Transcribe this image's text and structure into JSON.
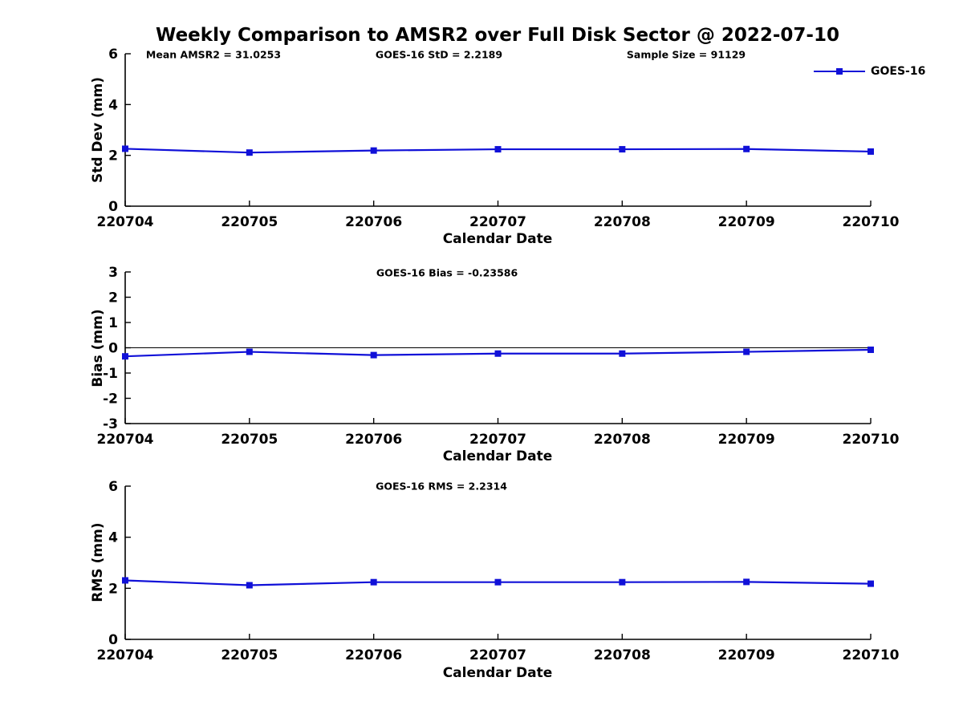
{
  "figure": {
    "title": "Weekly Comparison to AMSR2 over Full Disk Sector @ 2022-07-10",
    "background_color": "#ffffff",
    "line_color": "#1010d8",
    "axis_color": "#000000",
    "text_color": "#000000"
  },
  "legend": {
    "label": "GOES-16"
  },
  "chart_data": [
    {
      "type": "line",
      "title": "",
      "annotations": [
        "Mean AMSR2 = 31.0253",
        "GOES-16 StD = 2.2189",
        "Sample Size = 91129"
      ],
      "categories": [
        "220704",
        "220705",
        "220706",
        "220707",
        "220708",
        "220709",
        "220710"
      ],
      "series": [
        {
          "name": "GOES-16",
          "values": [
            2.26,
            2.11,
            2.19,
            2.24,
            2.24,
            2.25,
            2.15
          ]
        }
      ],
      "xlabel": "Calendar Date",
      "ylabel": "Std Dev (mm)",
      "ylim": [
        0,
        6
      ],
      "yticks": [
        0,
        2,
        4,
        6
      ],
      "grid": false,
      "zero_line": false,
      "legend_position": "top-right-outside"
    },
    {
      "type": "line",
      "title": "",
      "annotation": "GOES-16 Bias  = -0.23586",
      "categories": [
        "220704",
        "220705",
        "220706",
        "220707",
        "220708",
        "220709",
        "220710"
      ],
      "series": [
        {
          "name": "GOES-16",
          "values": [
            -0.34,
            -0.16,
            -0.29,
            -0.23,
            -0.23,
            -0.16,
            -0.08
          ]
        }
      ],
      "xlabel": "Calendar Date",
      "ylabel": "Bias (mm)",
      "ylim": [
        -3,
        3
      ],
      "yticks": [
        -3,
        -2,
        -1,
        0,
        1,
        2,
        3
      ],
      "grid": false,
      "zero_line": true,
      "legend_position": "none"
    },
    {
      "type": "line",
      "title": "",
      "annotation": "GOES-16 RMS = 2.2314",
      "categories": [
        "220704",
        "220705",
        "220706",
        "220707",
        "220708",
        "220709",
        "220710"
      ],
      "series": [
        {
          "name": "GOES-16",
          "values": [
            2.31,
            2.12,
            2.24,
            2.24,
            2.24,
            2.25,
            2.18
          ]
        }
      ],
      "xlabel": "Calendar Date",
      "ylabel": "RMS (mm)",
      "ylim": [
        0,
        6
      ],
      "yticks": [
        0,
        2,
        4,
        6
      ],
      "grid": false,
      "zero_line": false,
      "legend_position": "none"
    }
  ]
}
